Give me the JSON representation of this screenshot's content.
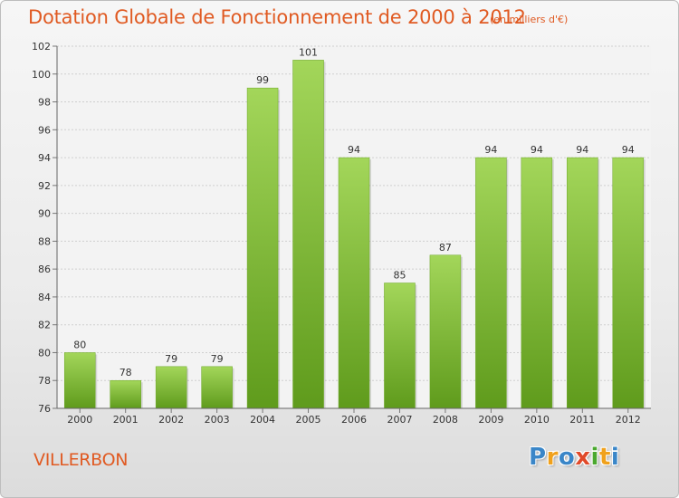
{
  "chart_data": {
    "type": "bar",
    "title": "Dotation Globale de Fonctionnement de 2000 à 2012",
    "subtitle": "(en milliers d'€)",
    "categories": [
      "2000",
      "2001",
      "2002",
      "2003",
      "2004",
      "2005",
      "2006",
      "2007",
      "2008",
      "2009",
      "2010",
      "2011",
      "2012"
    ],
    "values": [
      80,
      78,
      79,
      79,
      99,
      101,
      94,
      85,
      87,
      94,
      94,
      94,
      94
    ],
    "ylim": [
      76,
      102
    ],
    "yticks": [
      76,
      78,
      80,
      82,
      84,
      86,
      88,
      90,
      92,
      94,
      96,
      98,
      100,
      102
    ],
    "grid": true,
    "bar_color": "#7cb82f",
    "bar_color_light": "#a3d65a"
  },
  "commune": "VILLERBON",
  "logo": {
    "letters": [
      "P",
      "r",
      "o",
      "x",
      "i",
      "t",
      "i"
    ],
    "colors": [
      "#3a86c8",
      "#f0a11c",
      "#3a86c8",
      "#e04a2a",
      "#4aa82f",
      "#f0a11c",
      "#3a86c8"
    ]
  }
}
